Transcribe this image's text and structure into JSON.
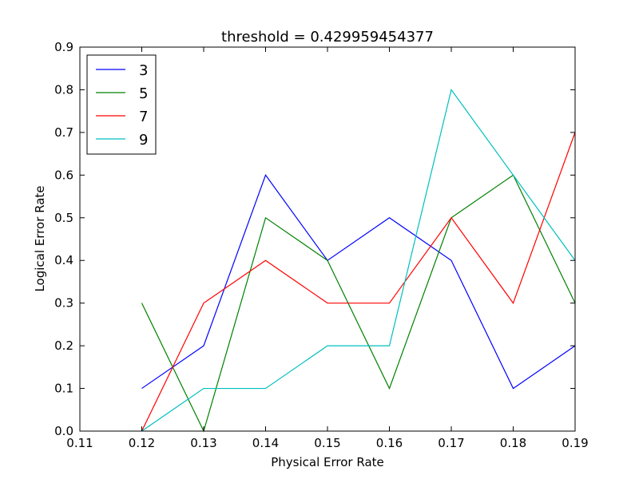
{
  "chart_data": {
    "type": "line",
    "title": "threshold = 0.429959454377",
    "xlabel": "Physical Error Rate",
    "ylabel": "Logical Error Rate",
    "xlim": [
      0.11,
      0.19
    ],
    "ylim": [
      0.0,
      0.9
    ],
    "x_ticks": [
      "0.11",
      "0.12",
      "0.13",
      "0.14",
      "0.15",
      "0.16",
      "0.17",
      "0.18",
      "0.19"
    ],
    "y_ticks": [
      "0.0",
      "0.1",
      "0.2",
      "0.3",
      "0.4",
      "0.5",
      "0.6",
      "0.7",
      "0.8",
      "0.9"
    ],
    "grid": false,
    "legend_position": "top-left",
    "x": [
      0.12,
      0.13,
      0.14,
      0.15,
      0.16,
      0.17,
      0.18,
      0.19
    ],
    "series": [
      {
        "name": "3",
        "color": "#0000ff",
        "values": [
          0.1,
          0.2,
          0.6,
          0.4,
          0.5,
          0.4,
          0.1,
          0.2
        ]
      },
      {
        "name": "5",
        "color": "#008000",
        "values": [
          0.3,
          0.0,
          0.5,
          0.4,
          0.1,
          0.5,
          0.6,
          0.3
        ]
      },
      {
        "name": "7",
        "color": "#ff0000",
        "values": [
          0.0,
          0.3,
          0.4,
          0.3,
          0.3,
          0.5,
          0.3,
          0.7
        ]
      },
      {
        "name": "9",
        "color": "#00bfbf",
        "values": [
          0.0,
          0.1,
          0.1,
          0.2,
          0.2,
          0.8,
          0.6,
          0.4
        ]
      }
    ]
  }
}
